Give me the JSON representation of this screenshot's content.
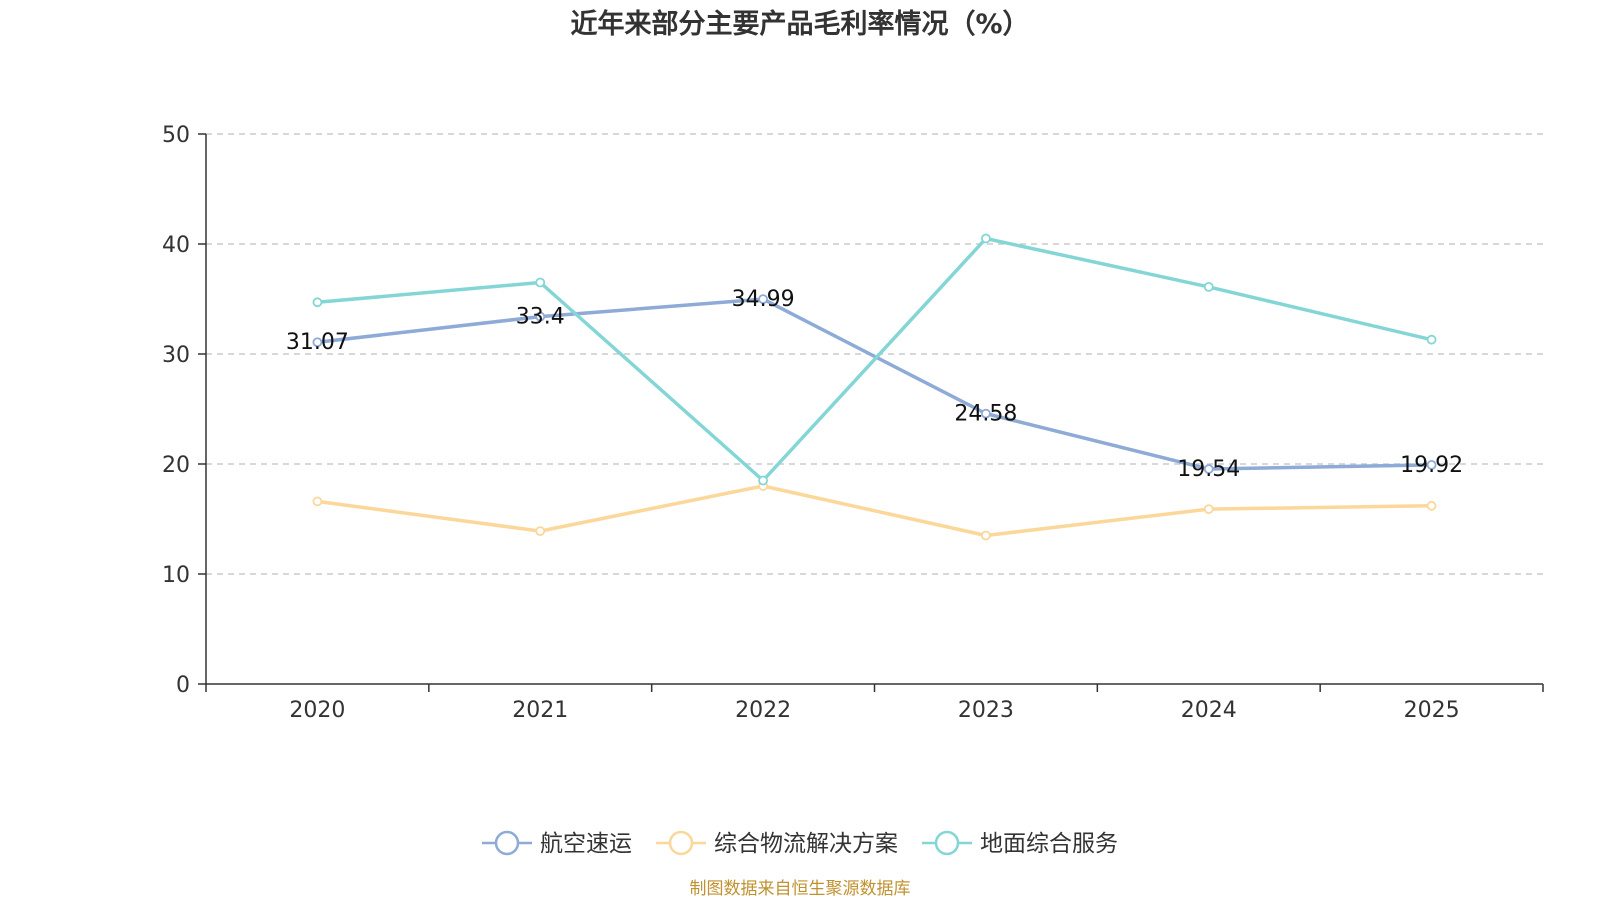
{
  "chart_data": {
    "type": "line",
    "title": "近年来部分主要产品毛利率情况（%）",
    "categories": [
      "2020",
      "2021",
      "2022",
      "2023",
      "2024",
      "2025"
    ],
    "ylim": [
      0,
      50
    ],
    "yticks": [
      0,
      10,
      20,
      30,
      40,
      50
    ],
    "xlabel": "",
    "ylabel": "",
    "grid": true,
    "legend_position": "bottom-center",
    "series": [
      {
        "name": "航空速运",
        "color": "#8eaad6",
        "values": [
          31.07,
          33.4,
          34.99,
          24.58,
          19.54,
          19.92
        ],
        "labels": [
          "31.07",
          "33.4",
          "34.99",
          "24.58",
          "19.54",
          "19.92"
        ]
      },
      {
        "name": "综合物流解决方案",
        "color": "#fbd79a",
        "values": [
          16.6,
          13.9,
          18.0,
          13.5,
          15.9,
          16.2
        ]
      },
      {
        "name": "地面综合服务",
        "color": "#84d6d6",
        "values": [
          34.7,
          36.5,
          18.5,
          40.5,
          36.1,
          31.3
        ]
      }
    ]
  },
  "source": {
    "text": "制图数据来自恒生聚源数据库",
    "color": "#c0922f"
  }
}
